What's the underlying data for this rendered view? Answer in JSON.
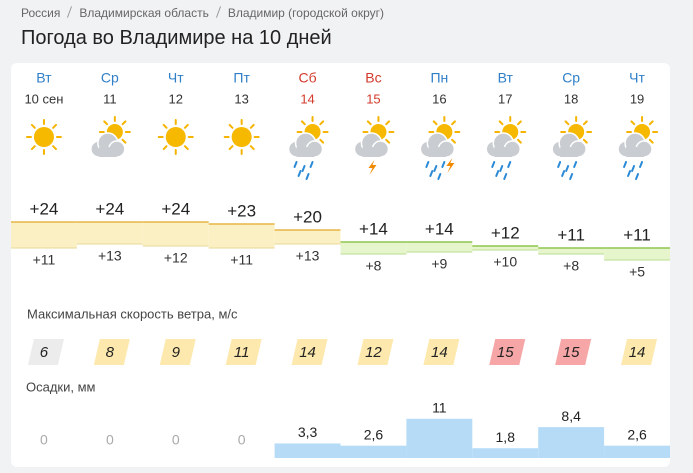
{
  "breadcrumbs": [
    "Россия",
    "Владимирская область",
    "Владимир (городской округ)"
  ],
  "title": "Погода во Владимире на 10 дней",
  "wind_title": "Максимальная скорость ветра, м/с",
  "precip_title": "Осадки, мм",
  "days": [
    {
      "weekday": "Вт",
      "date": "10 сен",
      "max": {
        "value": 24,
        "label": "+24"
      },
      "min": {
        "value": 11,
        "label": "+11"
      },
      "wind": 6,
      "precip": 0
    },
    {
      "weekday": "Ср",
      "date": "11",
      "max": {
        "value": 24,
        "label": "+24"
      },
      "min": {
        "value": 13,
        "label": "+13"
      },
      "wind": 8,
      "precip": 0
    },
    {
      "weekday": "Чт",
      "date": "12",
      "max": {
        "value": 24,
        "label": "+24"
      },
      "min": {
        "value": 12,
        "label": "+12"
      },
      "wind": 9,
      "precip": 0
    },
    {
      "weekday": "Пт",
      "date": "13",
      "max": {
        "value": 23,
        "label": "+23"
      },
      "min": {
        "value": 11,
        "label": "+11"
      },
      "wind": 11,
      "precip": 0
    },
    {
      "weekday": "Сб",
      "date": "14",
      "weekend": true,
      "max": {
        "value": 20,
        "label": "+20"
      },
      "min": {
        "value": 13,
        "label": "+13"
      },
      "wind": 14,
      "precip": {
        "value": 3.3,
        "label": "3,3"
      }
    },
    {
      "weekday": "Вс",
      "date": "15",
      "weekend": true,
      "max": {
        "value": 14,
        "label": "+14"
      },
      "min": {
        "value": 8,
        "label": "+8"
      },
      "wind": 12,
      "precip": {
        "value": 2.6,
        "label": "2,6"
      }
    },
    {
      "weekday": "Пн",
      "date": "16",
      "max": {
        "value": 14,
        "label": "+14"
      },
      "min": {
        "value": 9,
        "label": "+9"
      },
      "wind": 14,
      "precip": 11
    },
    {
      "weekday": "Вт",
      "date": "17",
      "max": {
        "value": 12,
        "label": "+12"
      },
      "min": {
        "value": 10,
        "label": "+10"
      },
      "wind": 15,
      "precip": {
        "value": 1.8,
        "label": "1,8"
      }
    },
    {
      "weekday": "Ср",
      "date": "18",
      "max": {
        "value": 11,
        "label": "+11"
      },
      "min": {
        "value": 8,
        "label": "+8"
      },
      "wind": 15,
      "precip": {
        "value": 8.4,
        "label": "8,4"
      }
    },
    {
      "weekday": "Чт",
      "date": "19",
      "max": {
        "value": 11,
        "label": "+11"
      },
      "min": {
        "value": 5,
        "label": "+5"
      },
      "wind": 14,
      "precip": {
        "value": 2.6,
        "label": "2,6"
      }
    }
  ]
}
